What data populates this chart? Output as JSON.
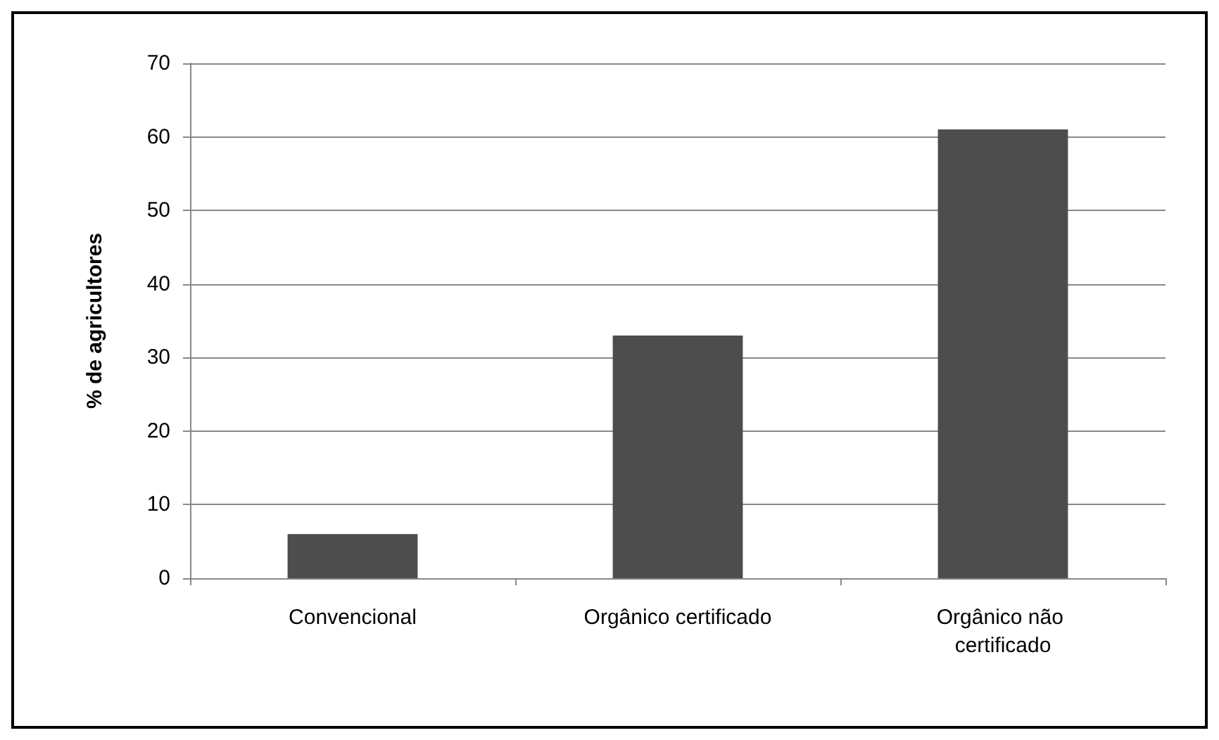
{
  "chart_data": {
    "type": "bar",
    "ylabel": "% de agricultores",
    "categories": [
      "Convencional",
      "Orgânico certificado",
      "Orgânico não certificado"
    ],
    "values": [
      6,
      33,
      61
    ],
    "color": "#4d4d4d",
    "ylim": [
      0,
      70
    ],
    "yticks": [
      0,
      10,
      20,
      30,
      40,
      50,
      60,
      70
    ],
    "grid": "y"
  }
}
